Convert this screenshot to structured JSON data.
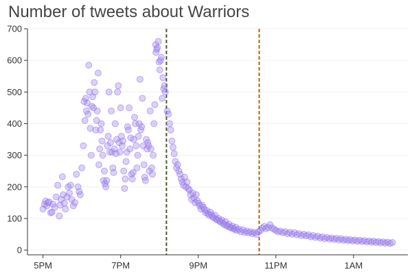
{
  "chart_data": {
    "type": "scatter",
    "title": "Number of tweets about Warriors",
    "xlabel": "",
    "ylabel": "",
    "x_unit": "hours after 5PM",
    "x_ticks": [
      {
        "x": 0,
        "label": "5PM"
      },
      {
        "x": 2,
        "label": "7PM"
      },
      {
        "x": 4,
        "label": "9PM"
      },
      {
        "x": 6,
        "label": "11PM"
      },
      {
        "x": 8,
        "label": "1AM"
      }
    ],
    "xlim": [
      -0.4,
      9.4
    ],
    "ylim": [
      -15,
      700
    ],
    "y_ticks": [
      0,
      100,
      200,
      300,
      400,
      500,
      600,
      700
    ],
    "grid": "horizontal",
    "point_color": "#a68cf0",
    "point_stroke": "#8a6ae6",
    "vlines": [
      {
        "x": 3.18,
        "color": "#4b5a2e"
      },
      {
        "x": 5.57,
        "color": "#b8610c"
      }
    ],
    "points": [
      [
        0.0,
        130
      ],
      [
        0.04,
        145
      ],
      [
        0.07,
        155
      ],
      [
        0.1,
        140
      ],
      [
        0.13,
        150
      ],
      [
        0.16,
        152
      ],
      [
        0.2,
        118
      ],
      [
        0.23,
        120
      ],
      [
        0.26,
        145
      ],
      [
        0.3,
        135
      ],
      [
        0.34,
        168
      ],
      [
        0.38,
        205
      ],
      [
        0.42,
        108
      ],
      [
        0.44,
        142
      ],
      [
        0.47,
        160
      ],
      [
        0.5,
        232
      ],
      [
        0.52,
        175
      ],
      [
        0.55,
        148
      ],
      [
        0.58,
        130
      ],
      [
        0.62,
        168
      ],
      [
        0.65,
        200
      ],
      [
        0.68,
        180
      ],
      [
        0.71,
        205
      ],
      [
        0.74,
        160
      ],
      [
        0.78,
        140
      ],
      [
        0.82,
        150
      ],
      [
        0.86,
        240
      ],
      [
        0.9,
        200
      ],
      [
        0.93,
        185
      ],
      [
        0.96,
        175
      ],
      [
        1.0,
        260
      ],
      [
        1.04,
        330
      ],
      [
        1.06,
        470
      ],
      [
        1.08,
        410
      ],
      [
        1.1,
        480
      ],
      [
        1.12,
        440
      ],
      [
        1.14,
        465
      ],
      [
        1.16,
        430
      ],
      [
        1.18,
        585
      ],
      [
        1.2,
        500
      ],
      [
        1.22,
        385
      ],
      [
        1.24,
        300
      ],
      [
        1.26,
        455
      ],
      [
        1.28,
        485
      ],
      [
        1.3,
        450
      ],
      [
        1.32,
        530
      ],
      [
        1.34,
        500
      ],
      [
        1.36,
        380
      ],
      [
        1.38,
        410
      ],
      [
        1.4,
        440
      ],
      [
        1.42,
        560
      ],
      [
        1.44,
        270
      ],
      [
        1.46,
        320
      ],
      [
        1.48,
        380
      ],
      [
        1.5,
        400
      ],
      [
        1.52,
        345
      ],
      [
        1.54,
        300
      ],
      [
        1.56,
        220
      ],
      [
        1.58,
        250
      ],
      [
        1.6,
        210
      ],
      [
        1.62,
        200
      ],
      [
        1.64,
        220
      ],
      [
        1.66,
        330
      ],
      [
        1.68,
        360
      ],
      [
        1.7,
        500
      ],
      [
        1.72,
        310
      ],
      [
        1.74,
        340
      ],
      [
        1.76,
        440
      ],
      [
        1.78,
        310
      ],
      [
        1.8,
        260
      ],
      [
        1.82,
        245
      ],
      [
        1.84,
        320
      ],
      [
        1.86,
        400
      ],
      [
        1.88,
        305
      ],
      [
        1.9,
        350
      ],
      [
        1.92,
        500
      ],
      [
        1.94,
        520
      ],
      [
        1.96,
        340
      ],
      [
        1.98,
        310
      ],
      [
        2.0,
        450
      ],
      [
        2.02,
        360
      ],
      [
        2.04,
        330
      ],
      [
        2.06,
        345
      ],
      [
        2.08,
        250
      ],
      [
        2.1,
        195
      ],
      [
        2.12,
        225
      ],
      [
        2.14,
        280
      ],
      [
        2.16,
        310
      ],
      [
        2.18,
        390
      ],
      [
        2.2,
        380
      ],
      [
        2.22,
        450
      ],
      [
        2.24,
        320
      ],
      [
        2.26,
        355
      ],
      [
        2.28,
        240
      ],
      [
        2.3,
        225
      ],
      [
        2.32,
        245
      ],
      [
        2.34,
        350
      ],
      [
        2.36,
        420
      ],
      [
        2.38,
        400
      ],
      [
        2.4,
        330
      ],
      [
        2.42,
        260
      ],
      [
        2.44,
        300
      ],
      [
        2.46,
        360
      ],
      [
        2.48,
        400
      ],
      [
        2.5,
        540
      ],
      [
        2.52,
        380
      ],
      [
        2.54,
        390
      ],
      [
        2.56,
        480
      ],
      [
        2.58,
        330
      ],
      [
        2.6,
        270
      ],
      [
        2.62,
        230
      ],
      [
        2.64,
        220
      ],
      [
        2.66,
        350
      ],
      [
        2.68,
        320
      ],
      [
        2.7,
        340
      ],
      [
        2.72,
        330
      ],
      [
        2.74,
        250
      ],
      [
        2.76,
        440
      ],
      [
        2.78,
        320
      ],
      [
        2.8,
        260
      ],
      [
        2.82,
        240
      ],
      [
        2.84,
        300
      ],
      [
        2.86,
        400
      ],
      [
        2.88,
        460
      ],
      [
        2.9,
        650
      ],
      [
        2.91,
        625
      ],
      [
        2.93,
        635
      ],
      [
        2.95,
        640
      ],
      [
        2.97,
        660
      ],
      [
        2.99,
        595
      ],
      [
        3.01,
        570
      ],
      [
        3.03,
        600
      ],
      [
        3.05,
        610
      ],
      [
        3.07,
        480
      ],
      [
        3.09,
        545
      ],
      [
        3.11,
        510
      ],
      [
        3.13,
        520
      ],
      [
        3.15,
        500
      ],
      [
        3.2,
        440
      ],
      [
        3.23,
        430
      ],
      [
        3.26,
        400
      ],
      [
        3.29,
        380
      ],
      [
        3.32,
        345
      ],
      [
        3.35,
        325
      ],
      [
        3.38,
        305
      ],
      [
        3.41,
        280
      ],
      [
        3.44,
        260
      ],
      [
        3.47,
        270
      ],
      [
        3.5,
        250
      ],
      [
        3.53,
        240
      ],
      [
        3.56,
        225
      ],
      [
        3.59,
        215
      ],
      [
        3.62,
        205
      ],
      [
        3.65,
        230
      ],
      [
        3.68,
        200
      ],
      [
        3.71,
        215
      ],
      [
        3.74,
        195
      ],
      [
        3.77,
        190
      ],
      [
        3.8,
        175
      ],
      [
        3.83,
        160
      ],
      [
        3.86,
        180
      ],
      [
        3.89,
        165
      ],
      [
        3.92,
        150
      ],
      [
        3.95,
        175
      ],
      [
        3.98,
        155
      ],
      [
        4.01,
        148
      ],
      [
        4.04,
        140
      ],
      [
        4.07,
        130
      ],
      [
        4.1,
        142
      ],
      [
        4.13,
        135
      ],
      [
        4.16,
        128
      ],
      [
        4.19,
        118
      ],
      [
        4.22,
        125
      ],
      [
        4.25,
        115
      ],
      [
        4.28,
        110
      ],
      [
        4.31,
        120
      ],
      [
        4.34,
        112
      ],
      [
        4.37,
        105
      ],
      [
        4.4,
        102
      ],
      [
        4.43,
        110
      ],
      [
        4.46,
        98
      ],
      [
        4.49,
        95
      ],
      [
        4.52,
        100
      ],
      [
        4.55,
        92
      ],
      [
        4.58,
        88
      ],
      [
        4.61,
        95
      ],
      [
        4.64,
        85
      ],
      [
        4.67,
        80
      ],
      [
        4.7,
        90
      ],
      [
        4.73,
        78
      ],
      [
        4.76,
        75
      ],
      [
        4.79,
        82
      ],
      [
        4.82,
        72
      ],
      [
        4.85,
        70
      ],
      [
        4.88,
        76
      ],
      [
        4.91,
        68
      ],
      [
        4.94,
        65
      ],
      [
        4.97,
        72
      ],
      [
        5.0,
        62
      ],
      [
        5.05,
        66
      ],
      [
        5.1,
        58
      ],
      [
        5.15,
        64
      ],
      [
        5.2,
        56
      ],
      [
        5.25,
        60
      ],
      [
        5.3,
        55
      ],
      [
        5.35,
        58
      ],
      [
        5.4,
        52
      ],
      [
        5.45,
        56
      ],
      [
        5.5,
        50
      ],
      [
        5.55,
        58
      ],
      [
        5.6,
        62
      ],
      [
        5.65,
        70
      ],
      [
        5.7,
        75
      ],
      [
        5.75,
        68
      ],
      [
        5.8,
        72
      ],
      [
        5.85,
        80
      ],
      [
        5.9,
        70
      ],
      [
        5.95,
        66
      ],
      [
        6.0,
        62
      ],
      [
        6.06,
        58
      ],
      [
        6.12,
        60
      ],
      [
        6.18,
        55
      ],
      [
        6.24,
        58
      ],
      [
        6.3,
        52
      ],
      [
        6.36,
        56
      ],
      [
        6.42,
        50
      ],
      [
        6.48,
        55
      ],
      [
        6.54,
        48
      ],
      [
        6.6,
        52
      ],
      [
        6.66,
        46
      ],
      [
        6.72,
        50
      ],
      [
        6.78,
        45
      ],
      [
        6.84,
        48
      ],
      [
        6.9,
        42
      ],
      [
        6.96,
        46
      ],
      [
        7.02,
        40
      ],
      [
        7.08,
        44
      ],
      [
        7.14,
        38
      ],
      [
        7.2,
        42
      ],
      [
        7.26,
        36
      ],
      [
        7.32,
        40
      ],
      [
        7.38,
        35
      ],
      [
        7.44,
        38
      ],
      [
        7.5,
        34
      ],
      [
        7.56,
        37
      ],
      [
        7.62,
        32
      ],
      [
        7.68,
        36
      ],
      [
        7.74,
        31
      ],
      [
        7.8,
        34
      ],
      [
        7.86,
        30
      ],
      [
        7.92,
        33
      ],
      [
        7.98,
        29
      ],
      [
        8.04,
        32
      ],
      [
        8.1,
        28
      ],
      [
        8.16,
        31
      ],
      [
        8.22,
        27
      ],
      [
        8.28,
        30
      ],
      [
        8.34,
        26
      ],
      [
        8.4,
        29
      ],
      [
        8.46,
        25
      ],
      [
        8.52,
        28
      ],
      [
        8.58,
        24
      ],
      [
        8.64,
        27
      ],
      [
        8.7,
        23
      ],
      [
        8.76,
        26
      ],
      [
        8.82,
        22
      ],
      [
        8.88,
        25
      ],
      [
        8.94,
        21
      ],
      [
        9.0,
        24
      ]
    ]
  }
}
